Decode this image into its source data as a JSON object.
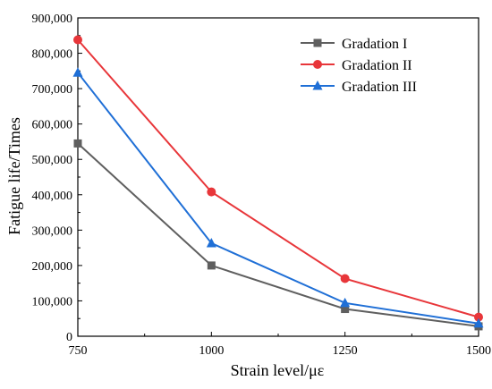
{
  "chart_data": {
    "type": "line",
    "x": [
      750,
      1000,
      1250,
      1500
    ],
    "x_tick_labels": [
      "750",
      "1000",
      "1250",
      "1500"
    ],
    "xlim": [
      750,
      1500
    ],
    "ylim": [
      0,
      900000
    ],
    "y_ticks": [
      0,
      100000,
      200000,
      300000,
      400000,
      500000,
      600000,
      700000,
      800000,
      900000
    ],
    "y_tick_labels": [
      "0",
      "100,000",
      "200,000",
      "300,000",
      "400,000",
      "500,000",
      "600,000",
      "700,000",
      "800,000",
      "900,000"
    ],
    "xlabel": "Strain level/με",
    "ylabel": "Fatigue life/Times",
    "grid": false,
    "legend_position": "top-right",
    "series": [
      {
        "name": "Gradation I",
        "values": [
          545000,
          200000,
          77000,
          28000
        ],
        "color": "#5f5f5f",
        "marker": "square"
      },
      {
        "name": "Gradation II",
        "values": [
          838000,
          408000,
          163000,
          54000
        ],
        "color": "#e8363a",
        "marker": "circle"
      },
      {
        "name": "Gradation III",
        "values": [
          745000,
          263000,
          94000,
          36000
        ],
        "color": "#1f6fd6",
        "marker": "triangle"
      }
    ]
  }
}
